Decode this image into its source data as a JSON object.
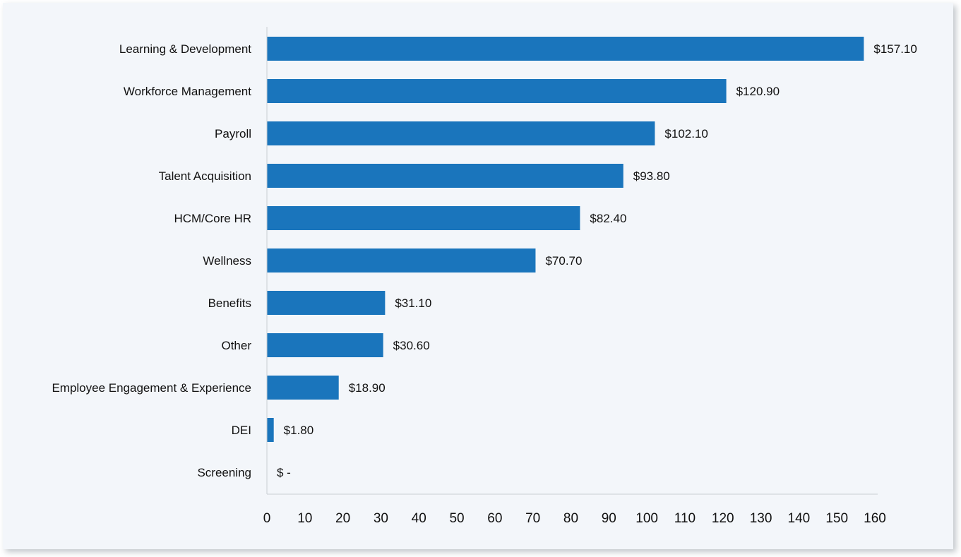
{
  "chart_data": {
    "type": "bar",
    "orientation": "horizontal",
    "categories": [
      "Learning & Development",
      "Workforce Management",
      "Payroll",
      "Talent Acquisition",
      "HCM/Core HR",
      "Wellness",
      "Benefits",
      "Other",
      "Employee Engagement & Experience",
      "DEI",
      "Screening"
    ],
    "values": [
      157.1,
      120.9,
      102.1,
      93.8,
      82.4,
      70.7,
      31.1,
      30.6,
      18.9,
      1.8,
      0
    ],
    "value_labels": [
      "$157.10",
      "$120.90",
      "$102.10",
      "$93.80",
      "$82.40",
      "$70.70",
      "$31.10",
      "$30.60",
      "$18.90",
      "$1.80",
      "$ -"
    ],
    "xlim": [
      0,
      160
    ],
    "xticks": [
      "0",
      "10",
      "20",
      "30",
      "40",
      "50",
      "60",
      "70",
      "80",
      "90",
      "100",
      "110",
      "120",
      "130",
      "140",
      "150",
      "160"
    ],
    "title": "",
    "xlabel": "",
    "ylabel": "",
    "grid": false,
    "bar_color": "#1a75bc",
    "background_color": "#f3f6fa",
    "axis_color": "#c8cdd3"
  }
}
